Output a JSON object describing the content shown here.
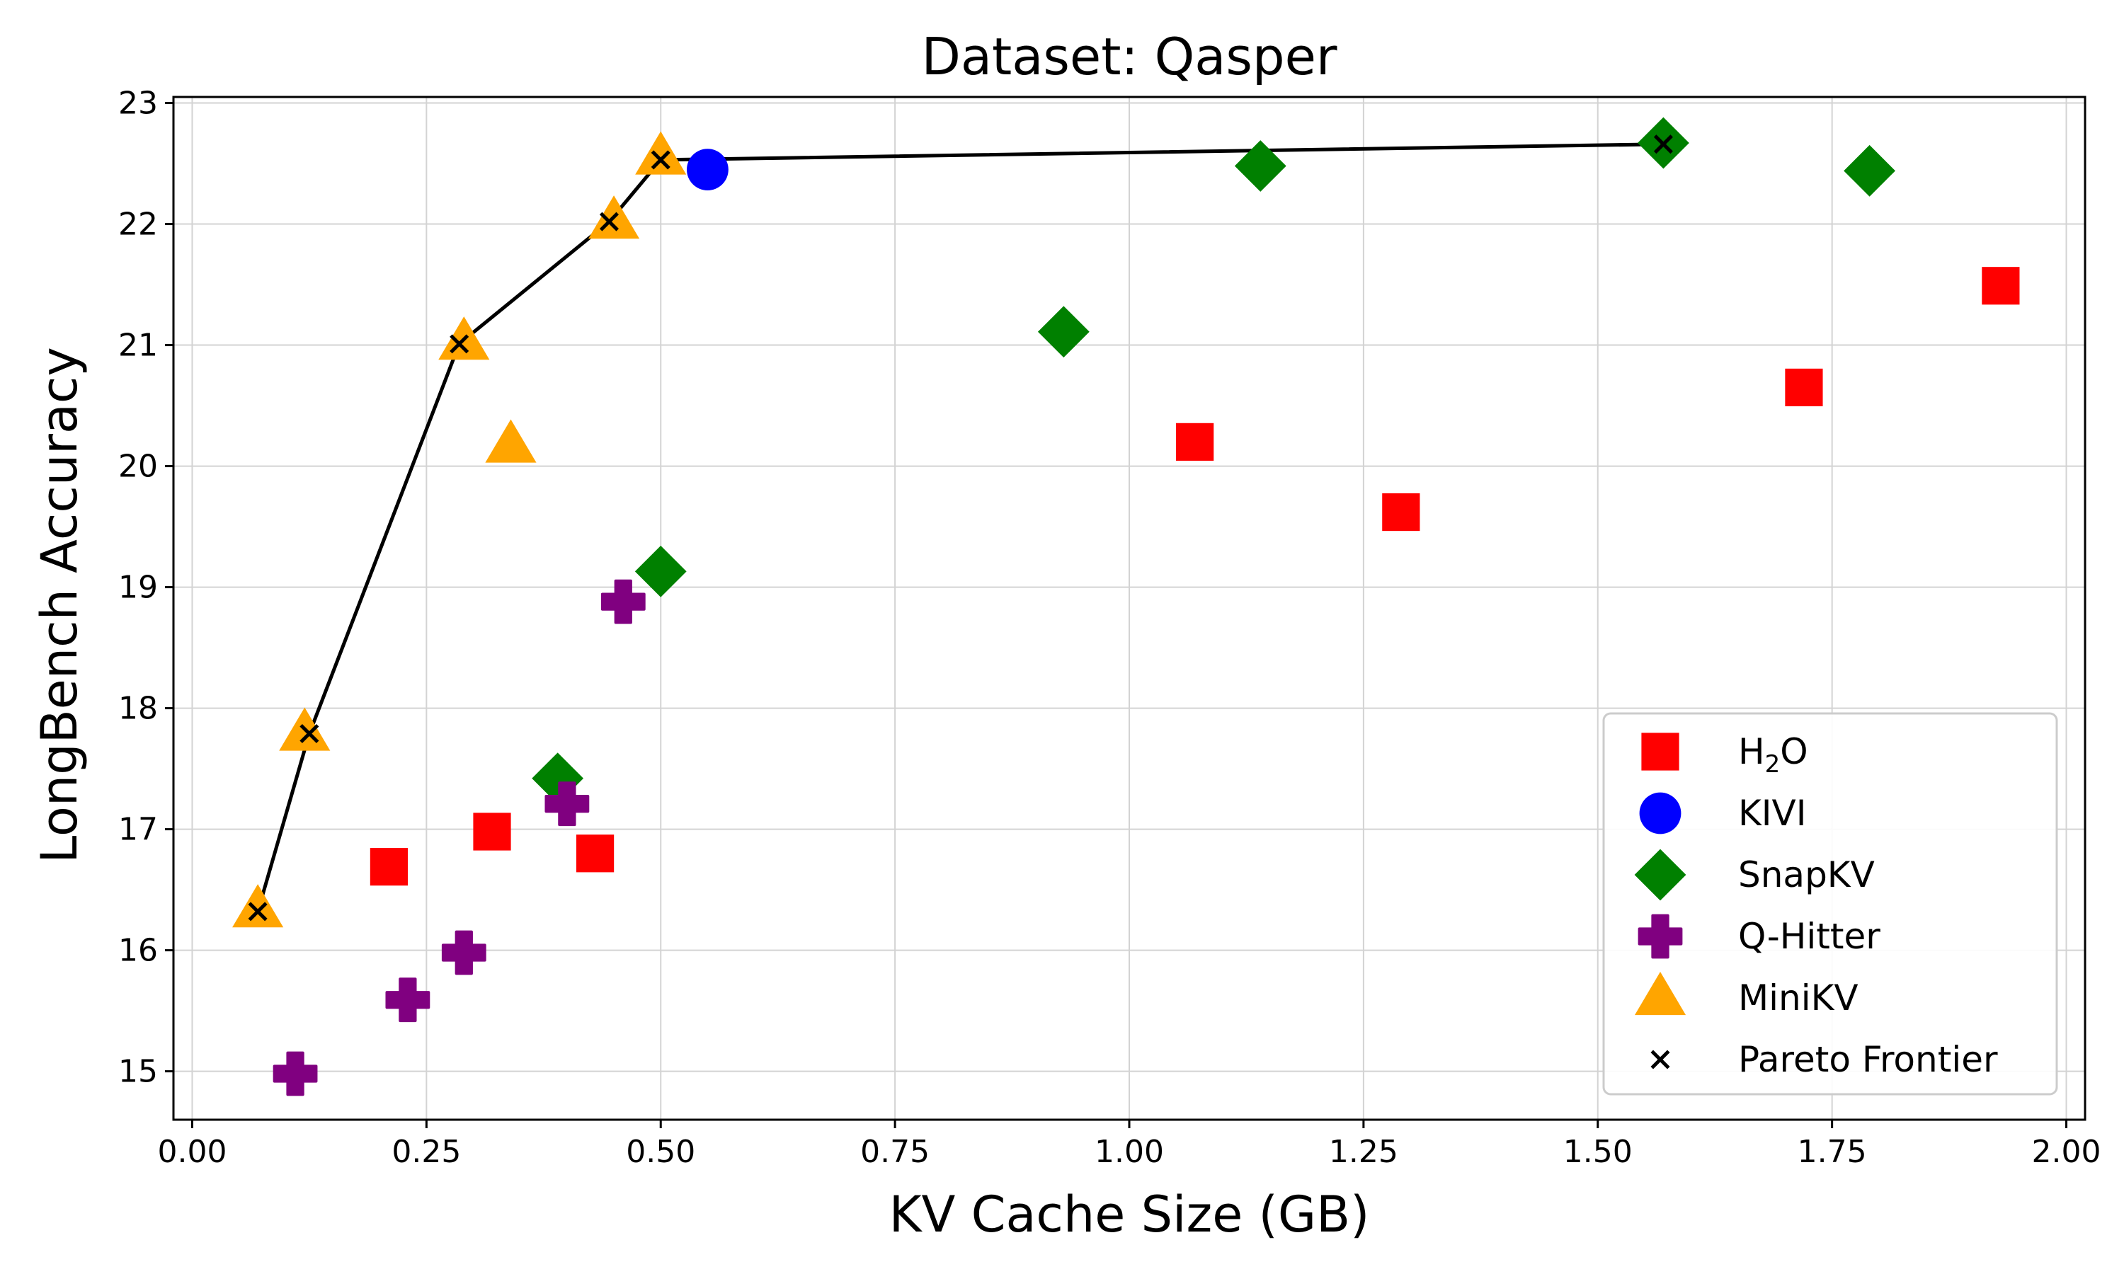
{
  "chart_data": {
    "type": "scatter",
    "title": "Dataset: Qasper",
    "xlabel": "KV Cache Size (GB)",
    "ylabel": "LongBench Accuracy",
    "xlim": [
      -0.02,
      2.02
    ],
    "ylim": [
      14.6,
      23.05
    ],
    "grid": true,
    "legend_position": "bottom-right",
    "x_ticks": [
      0.0,
      0.25,
      0.5,
      0.75,
      1.0,
      1.25,
      1.5,
      1.75,
      2.0
    ],
    "x_tick_labels": [
      "0.00",
      "0.25",
      "0.50",
      "0.75",
      "1.00",
      "1.25",
      "1.50",
      "1.75",
      "2.00"
    ],
    "y_ticks": [
      15,
      16,
      17,
      18,
      19,
      20,
      21,
      22,
      23
    ],
    "y_tick_labels": [
      "15",
      "16",
      "17",
      "18",
      "19",
      "20",
      "21",
      "22",
      "23"
    ],
    "series": [
      {
        "name": "H2O",
        "legend_base": "H",
        "legend_sub": "2",
        "legend_tail": "O",
        "marker": "square",
        "color": "#ff0000",
        "points": [
          [
            0.21,
            16.69
          ],
          [
            0.32,
            16.98
          ],
          [
            0.43,
            16.8
          ],
          [
            1.07,
            20.2
          ],
          [
            1.29,
            19.62
          ],
          [
            1.72,
            20.65
          ],
          [
            1.93,
            21.49
          ]
        ]
      },
      {
        "name": "KIVI",
        "marker": "circle",
        "color": "#0000ff",
        "points": [
          [
            0.55,
            22.45
          ]
        ]
      },
      {
        "name": "SnapKV",
        "marker": "diamond",
        "color": "#008000",
        "points": [
          [
            0.39,
            17.42
          ],
          [
            0.5,
            19.13
          ],
          [
            0.93,
            21.11
          ],
          [
            1.14,
            22.48
          ],
          [
            1.57,
            22.67
          ],
          [
            1.79,
            22.44
          ]
        ]
      },
      {
        "name": "Q-Hitter",
        "marker": "plus",
        "color": "#800080",
        "points": [
          [
            0.11,
            14.98
          ],
          [
            0.23,
            15.59
          ],
          [
            0.29,
            15.98
          ],
          [
            0.4,
            17.21
          ],
          [
            0.46,
            18.88
          ]
        ]
      },
      {
        "name": "MiniKV",
        "marker": "triangle",
        "color": "#ffa500",
        "points": [
          [
            0.07,
            16.33
          ],
          [
            0.12,
            17.79
          ],
          [
            0.29,
            21.02
          ],
          [
            0.34,
            20.17
          ],
          [
            0.45,
            22.02
          ],
          [
            0.5,
            22.55
          ]
        ]
      },
      {
        "name": "Pareto Frontier",
        "marker": "x-line",
        "color": "#000000",
        "points": [
          [
            0.07,
            16.32
          ],
          [
            0.125,
            17.79
          ],
          [
            0.285,
            21.01
          ],
          [
            0.445,
            22.02
          ],
          [
            0.5,
            22.53
          ],
          [
            1.57,
            22.66
          ]
        ]
      }
    ]
  }
}
